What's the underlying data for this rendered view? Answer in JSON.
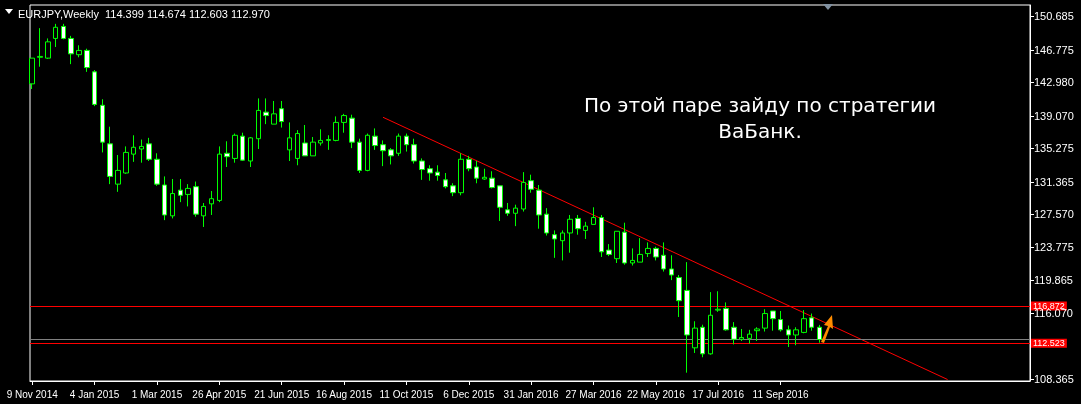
{
  "chart_data": {
    "type": "candlestick",
    "title": "EURJPY,Weekly  114.399 114.674 112.603 112.970",
    "annotations": [
      "По этой паре зайду по стратегии ВаБанк."
    ],
    "color": "#00ff00",
    "x": [
      "2014-11-09",
      "2014-11-16",
      "2014-11-23",
      "2014-11-30",
      "2014-12-07",
      "2014-12-14",
      "2014-12-21",
      "2014-12-28",
      "2015-01-04",
      "2015-01-11",
      "2015-01-18",
      "2015-01-25",
      "2015-02-01",
      "2015-02-08",
      "2015-02-15",
      "2015-02-22",
      "2015-03-01",
      "2015-03-08",
      "2015-03-15",
      "2015-03-22",
      "2015-03-29",
      "2015-04-05",
      "2015-04-12",
      "2015-04-19",
      "2015-04-26",
      "2015-05-03",
      "2015-05-10",
      "2015-05-17",
      "2015-05-24",
      "2015-05-31",
      "2015-06-07",
      "2015-06-14",
      "2015-06-21",
      "2015-06-28",
      "2015-07-05",
      "2015-07-12",
      "2015-07-19",
      "2015-07-26",
      "2015-08-02",
      "2015-08-09",
      "2015-08-16",
      "2015-08-23",
      "2015-08-30",
      "2015-09-06",
      "2015-09-13",
      "2015-09-20",
      "2015-09-27",
      "2015-10-04",
      "2015-10-11",
      "2015-10-18",
      "2015-10-25",
      "2015-11-01",
      "2015-11-08",
      "2015-11-15",
      "2015-11-22",
      "2015-11-29",
      "2015-12-06",
      "2015-12-13",
      "2015-12-20",
      "2015-12-27",
      "2016-01-03",
      "2016-01-10",
      "2016-01-17",
      "2016-01-24",
      "2016-01-31",
      "2016-02-07",
      "2016-02-14",
      "2016-02-21",
      "2016-02-28",
      "2016-03-06",
      "2016-03-13",
      "2016-03-20",
      "2016-03-27",
      "2016-04-03",
      "2016-04-10",
      "2016-04-17",
      "2016-04-24",
      "2016-05-01",
      "2016-05-08",
      "2016-05-15",
      "2016-05-22",
      "2016-05-29",
      "2016-06-05",
      "2016-06-12",
      "2016-06-19",
      "2016-06-26",
      "2016-07-03",
      "2016-07-10",
      "2016-07-17",
      "2016-07-24",
      "2016-07-31",
      "2016-08-07",
      "2016-08-14",
      "2016-08-21",
      "2016-08-28",
      "2016-09-04",
      "2016-09-11",
      "2016-09-18",
      "2016-09-25",
      "2016-10-02",
      "2016-10-09",
      "2016-10-16"
    ],
    "ohlc": [
      [
        142.8,
        145.8,
        142.2,
        145.8
      ],
      [
        145.9,
        149.3,
        144.8,
        146.0
      ],
      [
        145.8,
        148.1,
        145.7,
        147.7
      ],
      [
        148.1,
        149.8,
        147.1,
        149.4
      ],
      [
        149.5,
        149.8,
        148.0,
        148.1
      ],
      [
        148.1,
        148.4,
        145.1,
        146.3
      ],
      [
        146.2,
        147.3,
        145.9,
        146.7
      ],
      [
        146.7,
        146.9,
        144.2,
        144.7
      ],
      [
        144.2,
        144.4,
        140.2,
        140.4
      ],
      [
        140.3,
        141.0,
        134.8,
        136.0
      ],
      [
        135.8,
        137.8,
        131.1,
        132.0
      ],
      [
        131.1,
        134.5,
        130.2,
        132.7
      ],
      [
        132.4,
        135.5,
        132.3,
        134.8
      ],
      [
        134.6,
        136.8,
        133.7,
        135.4
      ],
      [
        135.2,
        136.3,
        133.6,
        135.5
      ],
      [
        135.8,
        136.5,
        133.8,
        134.0
      ],
      [
        134.0,
        134.7,
        130.9,
        131.1
      ],
      [
        131.0,
        132.0,
        126.9,
        127.5
      ],
      [
        127.4,
        131.7,
        127.1,
        130.0
      ],
      [
        130.4,
        131.7,
        129.0,
        129.8
      ],
      [
        129.9,
        131.1,
        128.5,
        130.6
      ],
      [
        130.8,
        131.4,
        127.3,
        127.6
      ],
      [
        127.4,
        128.9,
        126.1,
        128.5
      ],
      [
        128.8,
        130.3,
        127.5,
        129.4
      ],
      [
        129.2,
        135.5,
        129.0,
        134.6
      ],
      [
        134.7,
        136.1,
        133.1,
        134.3
      ],
      [
        134.1,
        137.0,
        133.6,
        136.8
      ],
      [
        136.7,
        137.1,
        133.8,
        133.9
      ],
      [
        133.8,
        136.6,
        133.1,
        136.5
      ],
      [
        136.4,
        141.1,
        135.2,
        139.7
      ],
      [
        139.5,
        141.1,
        138.1,
        139.1
      ],
      [
        138.1,
        140.8,
        138.1,
        139.3
      ],
      [
        139.9,
        140.8,
        137.7,
        138.4
      ],
      [
        135.1,
        138.3,
        133.8,
        136.5
      ],
      [
        134.1,
        137.4,
        133.3,
        137.0
      ],
      [
        135.9,
        138.0,
        134.4,
        134.4
      ],
      [
        134.4,
        136.6,
        134.4,
        136.0
      ],
      [
        135.9,
        137.5,
        135.6,
        136.2
      ],
      [
        136.2,
        136.8,
        135.1,
        136.3
      ],
      [
        136.2,
        139.0,
        136.1,
        138.3
      ],
      [
        138.3,
        139.3,
        137.1,
        139.1
      ],
      [
        138.8,
        139.2,
        135.3,
        136.0
      ],
      [
        136.0,
        136.4,
        132.4,
        132.7
      ],
      [
        132.7,
        137.0,
        132.6,
        136.8
      ],
      [
        136.7,
        137.6,
        135.1,
        135.6
      ],
      [
        135.7,
        136.2,
        133.2,
        135.0
      ],
      [
        135.1,
        135.3,
        133.4,
        134.4
      ],
      [
        134.7,
        137.0,
        134.4,
        136.7
      ],
      [
        136.7,
        137.0,
        134.9,
        135.7
      ],
      [
        135.7,
        136.4,
        133.5,
        133.8
      ],
      [
        133.8,
        134.1,
        131.6,
        132.8
      ],
      [
        132.9,
        133.3,
        131.5,
        132.4
      ],
      [
        132.5,
        133.3,
        131.5,
        132.1
      ],
      [
        131.6,
        132.4,
        130.6,
        130.8
      ],
      [
        130.9,
        131.2,
        129.7,
        130.1
      ],
      [
        130.1,
        134.7,
        129.8,
        134.0
      ],
      [
        134.0,
        134.4,
        132.6,
        132.9
      ],
      [
        133.1,
        133.8,
        131.2,
        131.8
      ],
      [
        131.7,
        132.9,
        131.6,
        131.9
      ],
      [
        131.8,
        132.6,
        130.6,
        130.7
      ],
      [
        130.9,
        130.9,
        126.8,
        128.4
      ],
      [
        128.1,
        128.9,
        127.4,
        127.7
      ],
      [
        127.7,
        128.7,
        126.2,
        128.3
      ],
      [
        128.2,
        132.5,
        127.9,
        131.3
      ],
      [
        131.5,
        132.2,
        130.1,
        130.5
      ],
      [
        130.4,
        131.0,
        125.9,
        127.5
      ],
      [
        127.6,
        128.3,
        125.1,
        125.4
      ],
      [
        125.2,
        125.7,
        122.5,
        124.7
      ],
      [
        124.5,
        125.7,
        122.2,
        125.4
      ],
      [
        125.4,
        127.5,
        123.1,
        127.0
      ],
      [
        127.1,
        127.5,
        125.2,
        125.9
      ],
      [
        125.7,
        126.7,
        124.7,
        126.2
      ],
      [
        126.4,
        128.4,
        126.4,
        127.2
      ],
      [
        127.2,
        127.5,
        122.6,
        123.2
      ],
      [
        123.4,
        124.1,
        122.7,
        122.9
      ],
      [
        122.4,
        125.6,
        121.9,
        125.6
      ],
      [
        125.5,
        126.6,
        121.7,
        121.9
      ],
      [
        121.9,
        123.6,
        121.6,
        122.2
      ],
      [
        122.0,
        124.8,
        122.0,
        122.9
      ],
      [
        123.0,
        124.3,
        122.6,
        123.6
      ],
      [
        123.6,
        123.8,
        122.2,
        122.6
      ],
      [
        122.8,
        124.3,
        120.9,
        121.2
      ],
      [
        121.2,
        122.8,
        119.9,
        120.5
      ],
      [
        120.2,
        120.5,
        115.6,
        117.5
      ],
      [
        118.7,
        122.0,
        109.1,
        113.5
      ],
      [
        112.0,
        115.1,
        111.4,
        114.3
      ],
      [
        114.4,
        114.7,
        110.9,
        111.3
      ],
      [
        111.3,
        118.5,
        111.2,
        115.8
      ],
      [
        116.4,
        118.6,
        116.2,
        116.5
      ],
      [
        116.6,
        117.3,
        114.0,
        114.1
      ],
      [
        114.4,
        115.0,
        112.4,
        113.0
      ],
      [
        113.0,
        114.2,
        112.8,
        113.2
      ],
      [
        113.1,
        114.1,
        112.5,
        113.6
      ],
      [
        114.0,
        114.4,
        112.8,
        114.2
      ],
      [
        114.3,
        116.5,
        113.9,
        116.0
      ],
      [
        116.3,
        116.3,
        114.0,
        115.4
      ],
      [
        115.3,
        116.3,
        113.9,
        114.1
      ],
      [
        114.1,
        114.6,
        112.1,
        113.5
      ],
      [
        113.5,
        114.4,
        112.3,
        114.1
      ],
      [
        113.8,
        116.4,
        113.7,
        115.4
      ],
      [
        115.5,
        116.0,
        114.0,
        114.4
      ],
      [
        114.399,
        114.674,
        112.603,
        112.97
      ]
    ],
    "series": [
      {
        "type": "line",
        "x": [
          "2015-09-20",
          "2017-02-08"
        ],
        "values": [
          138.9,
          108.3
        ],
        "color": "#ff0000",
        "marker": "none",
        "line_style": "solid"
      }
    ],
    "xlim": [
      "2014-11-07",
      "2017-04-23"
    ],
    "xticks": [
      {
        "value": "2014-11-09",
        "label": "9 Nov 2014"
      },
      {
        "value": "2015-01-04",
        "label": "4 Jan 2015"
      },
      {
        "value": "2015-03-01",
        "label": "1 Mar 2015"
      },
      {
        "value": "2015-04-26",
        "label": "26 Apr 2015"
      },
      {
        "value": "2015-06-21",
        "label": "21 Jun 2015"
      },
      {
        "value": "2015-08-16",
        "label": "16 Aug 2015"
      },
      {
        "value": "2015-10-11",
        "label": "11 Oct 2015"
      },
      {
        "value": "2015-12-06",
        "label": "6 Dec 2015"
      },
      {
        "value": "2016-01-31",
        "label": "31 Jan 2016"
      },
      {
        "value": "2016-03-27",
        "label": "27 Mar 2016"
      },
      {
        "value": "2016-05-22",
        "label": "22 May 2016"
      },
      {
        "value": "2016-07-17",
        "label": "17 Jul 2016"
      },
      {
        "value": "2016-09-11",
        "label": "11 Sep 2016"
      }
    ],
    "ylim": [
      108.13,
      152.0
    ],
    "yticks": [
      150.685,
      146.775,
      {
        "value": 142.98,
        "label": "142.980"
      },
      {
        "value": 139.07,
        "label": "139.070"
      },
      135.275,
      131.365,
      {
        "value": 127.57,
        "label": "127.570"
      },
      123.775,
      119.865,
      {
        "value": 116.07,
        "label": "116.070"
      },
      108.365
    ],
    "ref_lines": [
      {
        "axis": "y",
        "value": 116.872,
        "label": "116.872",
        "color": "#ff0000"
      },
      {
        "axis": "y",
        "value": 112.97,
        "color": "#808080"
      },
      {
        "axis": "y",
        "value": 112.523,
        "label": "112.523",
        "color": "#ff0000"
      }
    ]
  }
}
